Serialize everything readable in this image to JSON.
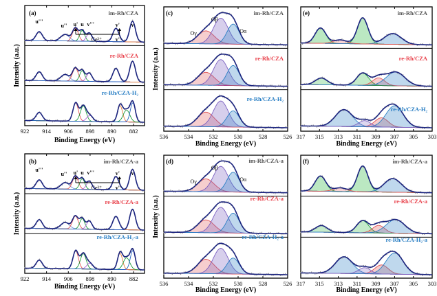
{
  "chart_data": [
    {
      "id": "a",
      "type": "line",
      "panel_label": "(a)",
      "xlabel": "Binding Energy (eV)",
      "ylabel": "Intensity (a.u.)",
      "xlim": [
        922,
        878
      ],
      "xticks": [
        922,
        914,
        906,
        898,
        890,
        882
      ],
      "x_reversed": true,
      "y_ticks_shown": false,
      "annotations": [
        "u'''",
        "u''",
        "u'",
        "u",
        "v'''",
        "v'",
        "v",
        "v''",
        "Ce3+"
      ],
      "subplots": [
        {
          "name": "im-Rh/CZA",
          "label_color": "#555555",
          "peaks_eV": [
            916.7,
            907.2,
            903.4,
            900.9,
            898.3,
            888.5,
            882.4
          ]
        },
        {
          "name": "re-Rh/CZA",
          "label_color": "#e8404a",
          "peaks_eV": [
            916.7,
            907.2,
            903.4,
            900.9,
            898.3,
            888.5,
            882.4
          ]
        },
        {
          "name": "re-Rh/CZA-H2",
          "label_color": "#2a7fc4",
          "peaks_eV": [
            916.7,
            903.3,
            900.5,
            898.0,
            886.9,
            884.6,
            882.3
          ]
        }
      ]
    },
    {
      "id": "c",
      "type": "line",
      "panel_label": "(c)",
      "xlabel": "Binding Energy (eV)",
      "ylabel": "Intensity (a.u.)",
      "xlim": [
        536,
        526
      ],
      "xticks": [
        536,
        534,
        532,
        530,
        528,
        526
      ],
      "x_reversed": true,
      "y_ticks_shown": false,
      "annotations": [
        "Oγ",
        "Oβ",
        "Oα"
      ],
      "subplots": [
        {
          "name": "im-Rh/CZA",
          "label_color": "#555555",
          "components_eV": {
            "Oγ": 532.6,
            "Oβ": 531.4,
            "Oα": 530.4
          }
        },
        {
          "name": "re-Rh/CZA",
          "label_color": "#e8404a",
          "components_eV": {
            "Oγ": 532.6,
            "Oβ": 531.4,
            "Oα": 530.4
          }
        },
        {
          "name": "re-Rh/CZA-H2",
          "label_color": "#2a7fc4",
          "components_eV": {
            "Oγ": 532.6,
            "Oβ": 531.4,
            "Oα": 530.4
          }
        }
      ]
    },
    {
      "id": "e",
      "type": "line",
      "panel_label": "(e)",
      "xlabel": "Binding Energy (eV)",
      "ylabel": "",
      "xlim": [
        317,
        303
      ],
      "xticks": [
        317,
        315,
        313,
        311,
        309,
        307,
        305,
        303
      ],
      "x_reversed": true,
      "y_ticks_shown": false,
      "subplots": [
        {
          "name": "im-Rh/CZA",
          "label_color": "#555555"
        },
        {
          "name": "re-Rh/CZA",
          "label_color": "#e8404a"
        },
        {
          "name": "re-Rh/CZA-H2",
          "label_color": "#2a7fc4"
        }
      ]
    },
    {
      "id": "b",
      "type": "line",
      "panel_label": "(b)",
      "xlabel": "Binding Energy (eV)",
      "ylabel": "Intensity (a.u.)",
      "xlim": [
        922,
        878
      ],
      "xticks": [
        922,
        914,
        906,
        898,
        890,
        882
      ],
      "x_reversed": true,
      "y_ticks_shown": false,
      "annotations": [
        "u'''",
        "u''",
        "u'",
        "u",
        "v'''",
        "v'",
        "v",
        "v''",
        "Ce3+"
      ],
      "subplots": [
        {
          "name": "im-Rh/CZA-a",
          "label_color": "#555555"
        },
        {
          "name": "re-Rh/CZA-a",
          "label_color": "#e8404a"
        },
        {
          "name": "re-Rh/CZA-H2-a",
          "label_color": "#2a7fc4"
        }
      ]
    },
    {
      "id": "d",
      "type": "line",
      "panel_label": "(d)",
      "xlabel": "Binding Energy (eV)",
      "ylabel": "Intensity (a.u.)",
      "xlim": [
        536,
        526
      ],
      "xticks": [
        536,
        534,
        532,
        530,
        528,
        526
      ],
      "x_reversed": true,
      "y_ticks_shown": false,
      "annotations": [
        "Oγ",
        "Oβ",
        "Oα"
      ],
      "subplots": [
        {
          "name": "im-Rh/CZA-a",
          "label_color": "#555555"
        },
        {
          "name": "re-Rh/CZA-a",
          "label_color": "#e8404a"
        },
        {
          "name": "re-Rh/CZA-H2-a",
          "label_color": "#2a7fc4"
        }
      ]
    },
    {
      "id": "f",
      "type": "line",
      "panel_label": "(f)",
      "xlabel": "Binding Energy (eV)",
      "ylabel": "",
      "xlim": [
        317,
        303
      ],
      "xticks": [
        317,
        315,
        313,
        311,
        309,
        307,
        305,
        303
      ],
      "x_reversed": true,
      "y_ticks_shown": false,
      "subplots": [
        {
          "name": "im-Rh/CZA-a",
          "label_color": "#555555"
        },
        {
          "name": "re-Rh/CZA-a",
          "label_color": "#e8404a"
        },
        {
          "name": "re-Rh/CZA-H2-a",
          "label_color": "#2a7fc4"
        }
      ]
    }
  ]
}
